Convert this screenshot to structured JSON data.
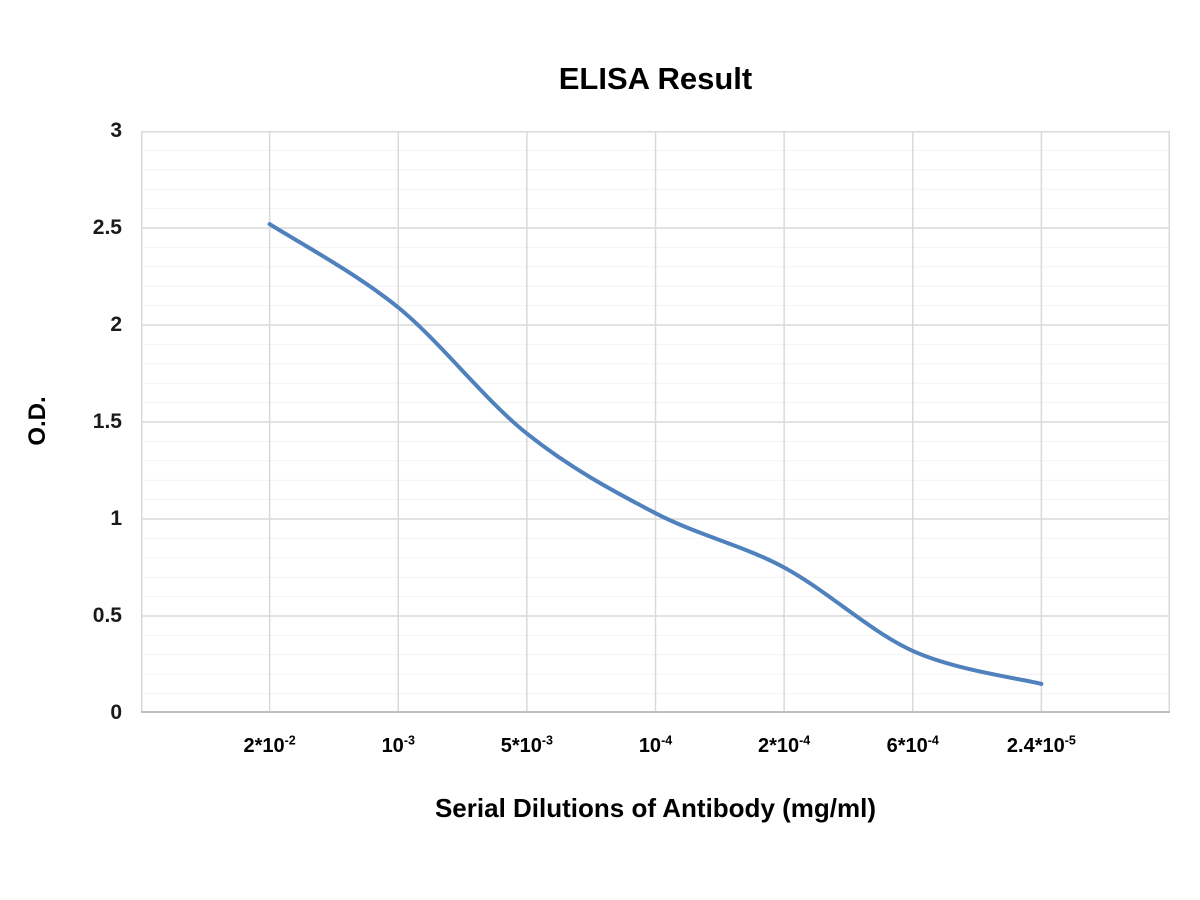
{
  "page": {
    "background": "#ffffff"
  },
  "chart_data": {
    "type": "line",
    "title": "ELISA Result",
    "xlabel": "Serial Dilutions of Antibody (mg/ml)",
    "ylabel": "O.D.",
    "categories": [
      "2*10⁻²",
      "10⁻³",
      "5*10⁻³",
      "10⁻⁴",
      "2*10⁻⁴",
      "6*10⁻⁴",
      "2.4*10⁻⁵"
    ],
    "x_ticks": [
      {
        "base": "2*10",
        "exp": "-2"
      },
      {
        "base": "10",
        "exp": "-3"
      },
      {
        "base": "5*10",
        "exp": "-3"
      },
      {
        "base": "10",
        "exp": "-4"
      },
      {
        "base": "2*10",
        "exp": "-4"
      },
      {
        "base": "6*10",
        "exp": "-4"
      },
      {
        "base": "2.4*10",
        "exp": "-5"
      }
    ],
    "values": [
      2.52,
      2.09,
      1.44,
      1.03,
      0.75,
      0.32,
      0.15
    ],
    "y_tick_labels": [
      "3",
      "2.5",
      "2",
      "1.5",
      "1",
      "0.5",
      "0"
    ],
    "ylim": [
      0,
      3
    ],
    "y_major_step": 0.5,
    "y_minor_step": 0.1,
    "grid": "horizontal major+minor, vertical major; plot border on all sides",
    "legend": "none",
    "smooth": true,
    "x_layout": "7 points evenly spaced with one empty interval of padding at each end",
    "colors": {
      "line": "#4f81bd",
      "grid_major": "#d9d9d9",
      "grid_minor": "#f2f2f2",
      "axis_line": "#bfbfbf",
      "text": "#000000"
    }
  }
}
